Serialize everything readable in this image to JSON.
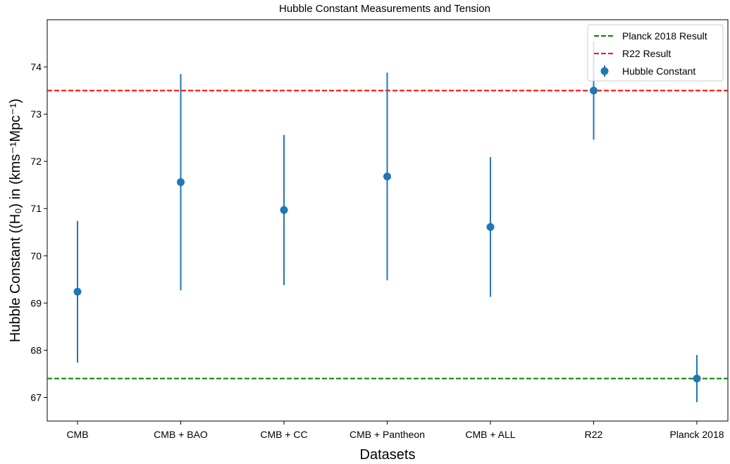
{
  "chart_data": {
    "type": "scatter",
    "title": "Hubble Constant Measurements and Tension",
    "xlabel": "Datasets",
    "ylabel": "Hubble Constant ((H₀) in (kms⁻¹Mpc⁻¹)",
    "categories": [
      "CMB",
      "CMB + BAO",
      "CMB + CC",
      "CMB + Pantheon",
      "CMB + ALL",
      "R22",
      "Planck 2018"
    ],
    "series": [
      {
        "name": "Hubble Constant",
        "values": [
          69.24,
          71.56,
          70.97,
          71.68,
          70.61,
          73.5,
          67.4
        ],
        "errors": [
          1.5,
          2.29,
          1.59,
          2.2,
          1.48,
          1.04,
          0.5
        ],
        "color": "#1f77b4"
      }
    ],
    "reference_lines": [
      {
        "name": "Planck 2018 Result",
        "value": 67.4,
        "color": "#008000",
        "style": "dashed"
      },
      {
        "name": "R22 Result",
        "value": 73.5,
        "color": "#ff0000",
        "style": "dashed"
      }
    ],
    "yticks": [
      67,
      68,
      69,
      70,
      71,
      72,
      73,
      74
    ],
    "ylim": [
      66.5,
      75.0
    ],
    "grid": false,
    "legend_position": "top-right"
  }
}
